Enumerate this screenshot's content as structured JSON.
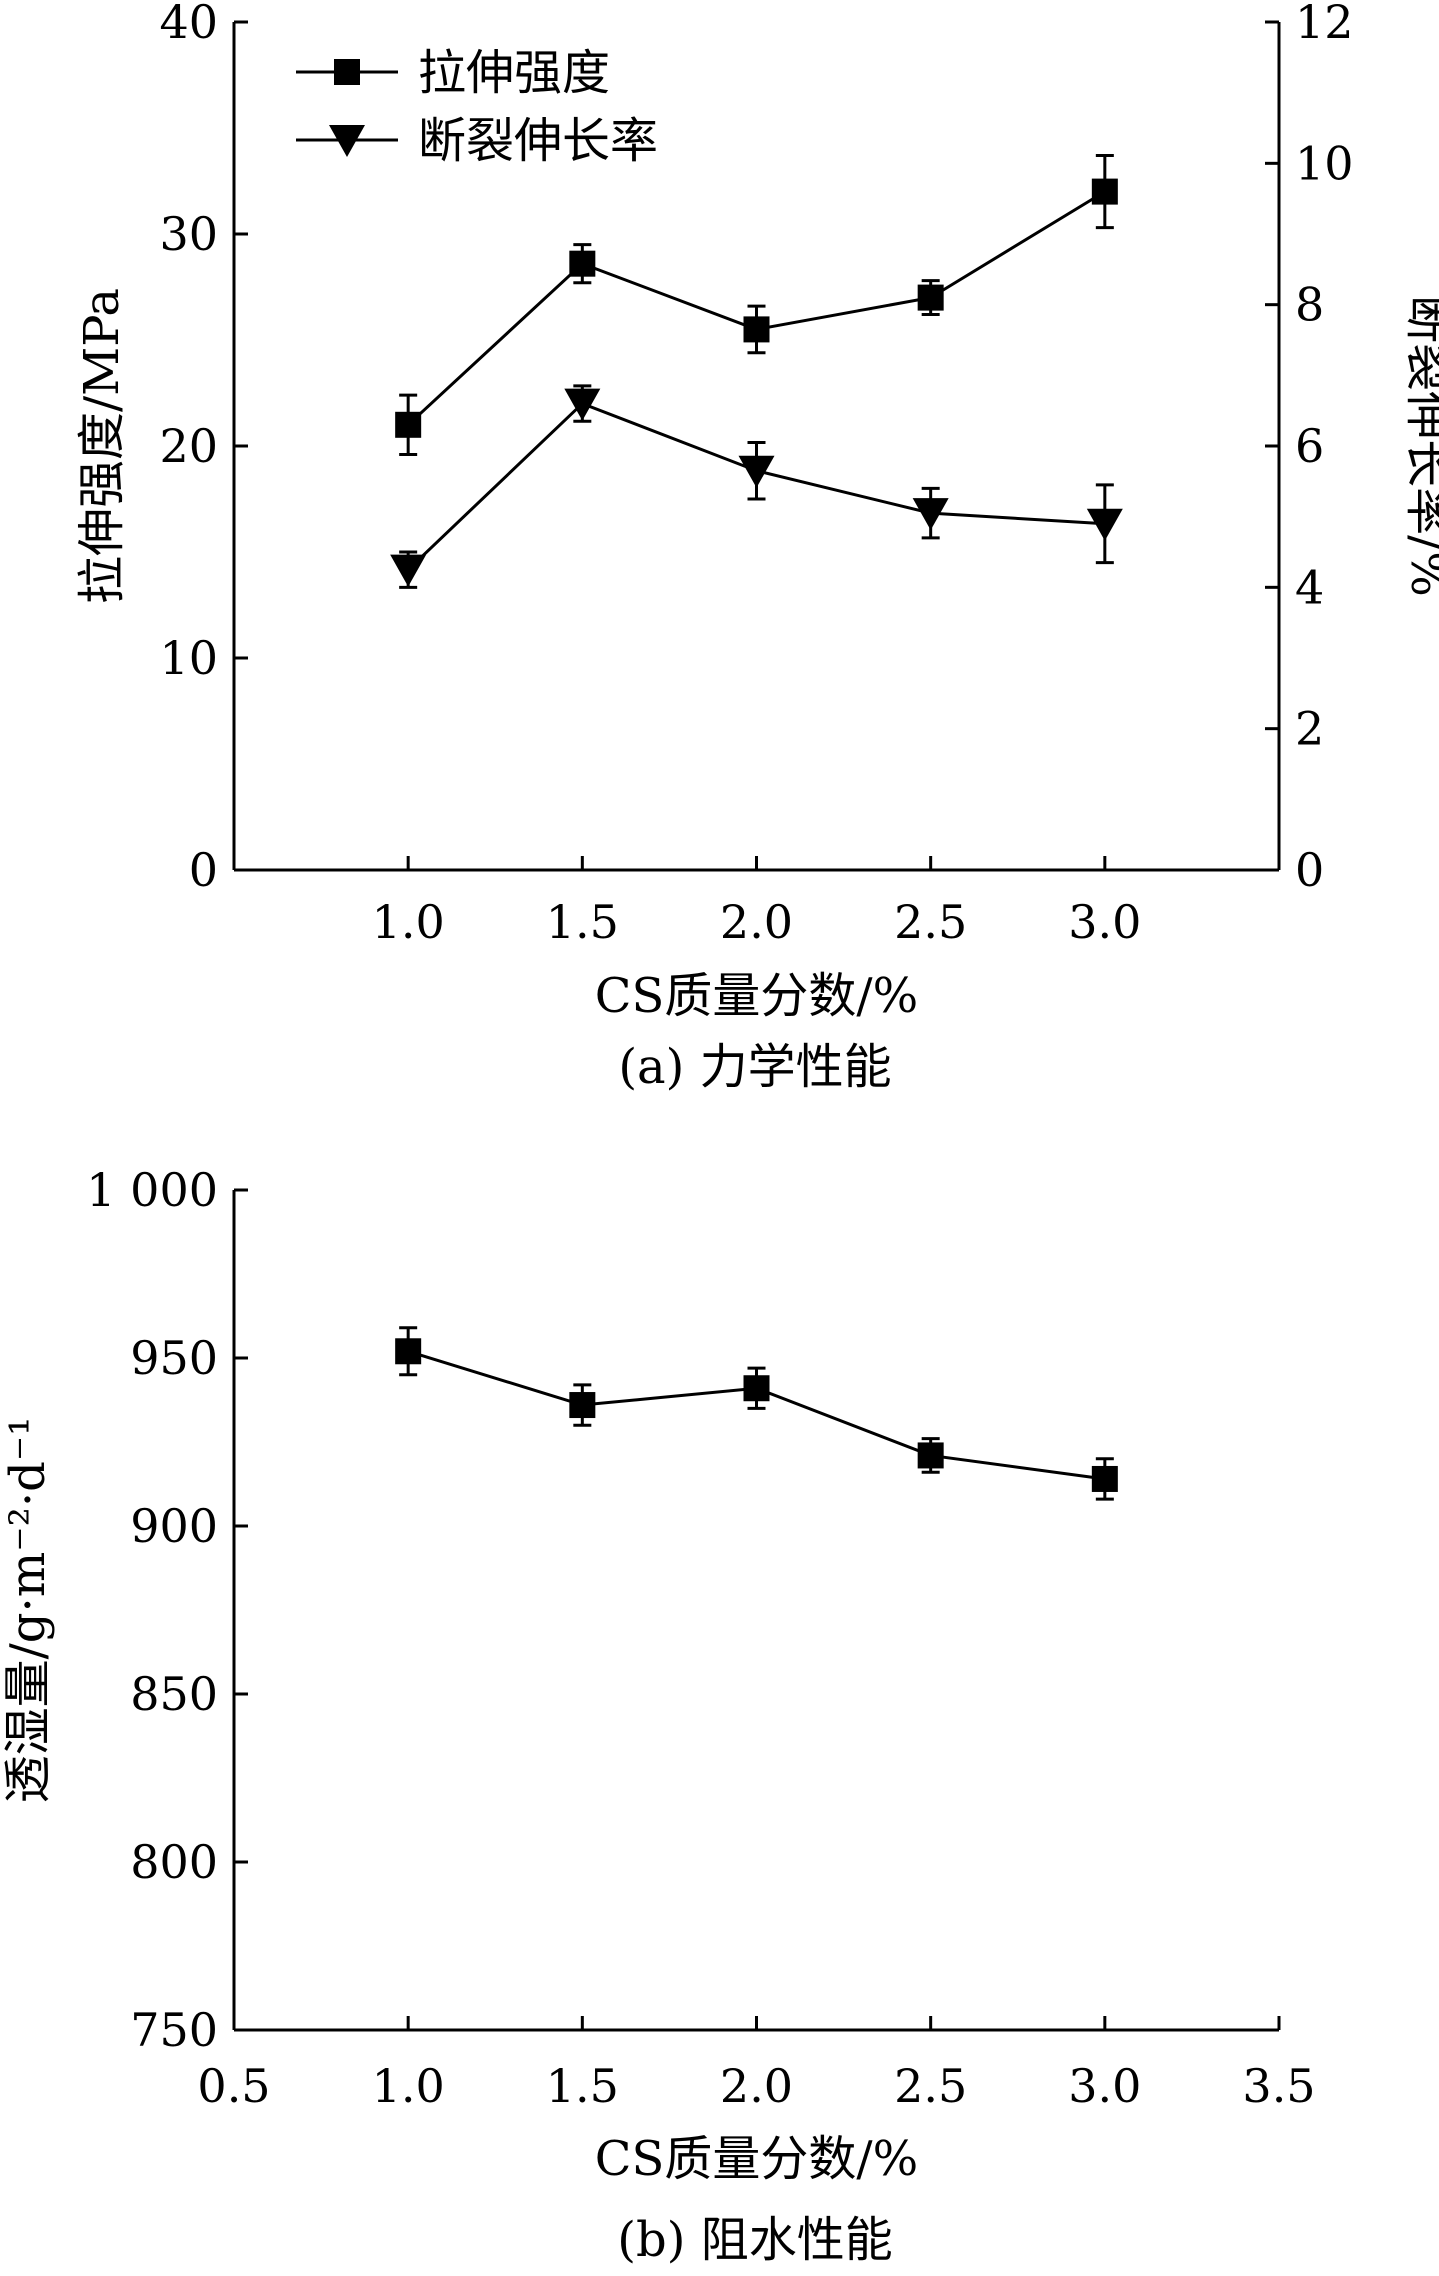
{
  "chart_data": [
    {
      "type": "line",
      "caption": "(a) 力学性能",
      "xlabel": "CS质量分数/%",
      "ylabel": "拉伸强度/MPa",
      "y2label": "断裂伸长率/%",
      "xlim": [
        0.5,
        3.5
      ],
      "ylim": [
        0,
        40
      ],
      "y2lim": [
        0,
        12
      ],
      "xticks": [
        "1.0",
        "1.5",
        "2.0",
        "2.5",
        "3.0"
      ],
      "yticks": [
        "0",
        "10",
        "20",
        "30",
        "40"
      ],
      "y2ticks": [
        "0",
        "2",
        "4",
        "6",
        "8",
        "10",
        "12"
      ],
      "grid": false,
      "legend_position": "top-left",
      "series": [
        {
          "name": "拉伸强度",
          "marker": "square",
          "axis": "left",
          "x": [
            1.0,
            1.5,
            2.0,
            2.5,
            3.0
          ],
          "values": [
            21.0,
            28.6,
            25.5,
            27.0,
            32.0
          ],
          "errors": [
            1.4,
            0.9,
            1.1,
            0.8,
            1.7
          ]
        },
        {
          "name": "断裂伸长率",
          "marker": "triangle-down",
          "axis": "right",
          "x": [
            1.0,
            1.5,
            2.0,
            2.5,
            3.0
          ],
          "values": [
            4.25,
            6.6,
            5.65,
            5.05,
            4.9
          ],
          "errors": [
            0.25,
            0.25,
            0.4,
            0.35,
            0.55
          ]
        }
      ]
    },
    {
      "type": "line",
      "caption": "(b) 阻水性能",
      "xlabel": "CS质量分数/%",
      "ylabel": "透湿量/g·m⁻²·d⁻¹",
      "xlim": [
        0.5,
        3.5
      ],
      "ylim": [
        750,
        1000
      ],
      "xticks": [
        "0.5",
        "1.0",
        "1.5",
        "2.0",
        "2.5",
        "3.0",
        "3.5"
      ],
      "yticks": [
        "750",
        "800",
        "850",
        "900",
        "950",
        "1 000"
      ],
      "grid": false,
      "series": [
        {
          "marker": "square",
          "x": [
            1.0,
            1.5,
            2.0,
            2.5,
            3.0
          ],
          "values": [
            952,
            936,
            941,
            921,
            914
          ],
          "errors": [
            7,
            6,
            6,
            5,
            6
          ]
        }
      ]
    }
  ]
}
